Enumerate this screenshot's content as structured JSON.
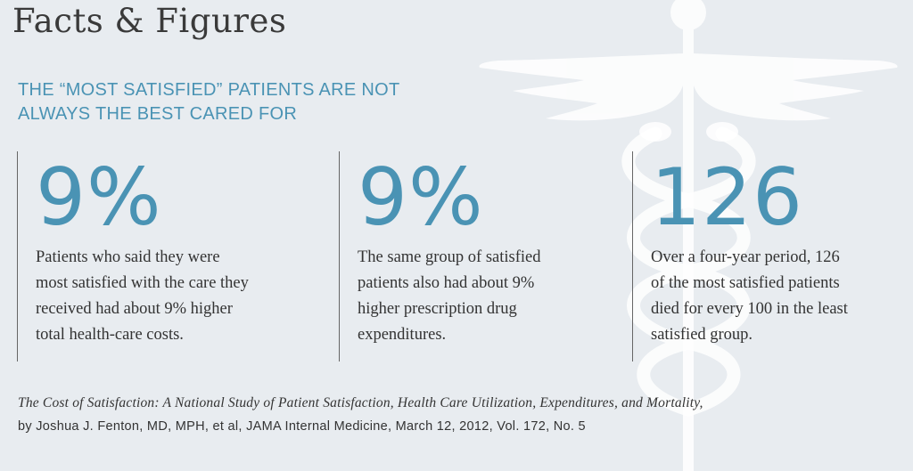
{
  "header": {
    "title": "Facts & Figures",
    "subtitle_line1": "THE “MOST SATISFIED” PATIENTS ARE NOT",
    "subtitle_line2": "ALWAYS THE BEST CARED FOR"
  },
  "background": {
    "emblem_icon": "caduceus-icon"
  },
  "stats": [
    {
      "value": "9%",
      "lines": [
        "Patients who said they were",
        "most satisfied with the care they",
        "received had about 9% higher",
        "total health-care costs."
      ]
    },
    {
      "value": "9%",
      "lines": [
        "The same group of satisfied",
        "patients also had about 9%",
        "higher prescription drug",
        "expenditures."
      ]
    },
    {
      "value": "126",
      "lines": [
        "Over a four-year period, 126",
        "of the most satisfied patients",
        "died for every 100 in the least",
        "satisfied group."
      ]
    }
  ],
  "source": {
    "citation": "The Cost of Satisfaction: A National Study of Patient Satisfaction, Health Care Utilization, Expenditures, and Mortality,",
    "byline": "by Joshua J. Fenton, MD, MPH, et al, JAMA Internal Medicine, March 12, 2012, Vol. 172, No. 5"
  },
  "colors": {
    "accent": "#4a93b4",
    "background": "#e8ecf0",
    "text": "#333333",
    "emblem": "#ffffff"
  }
}
